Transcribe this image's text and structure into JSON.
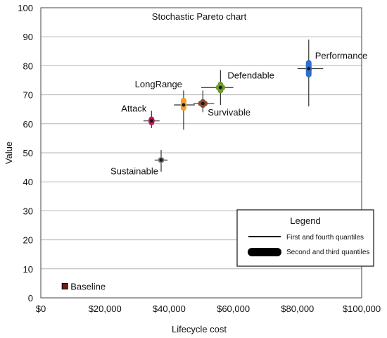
{
  "chart_data": {
    "type": "scatter",
    "title": "Stochastic Pareto chart",
    "xlabel": "Lifecycle cost",
    "ylabel": "Value",
    "xlim": [
      0,
      100000
    ],
    "ylim": [
      0,
      100
    ],
    "x_ticks": [
      0,
      20000,
      40000,
      60000,
      80000,
      100000
    ],
    "x_tick_labels": [
      "$0",
      "$20,000",
      "$40,000",
      "$60,000",
      "$80,000",
      "$100,000"
    ],
    "y_ticks": [
      0,
      10,
      20,
      30,
      40,
      50,
      60,
      70,
      80,
      90,
      100
    ],
    "y_tick_labels": [
      "0",
      "10",
      "20",
      "30",
      "40",
      "50",
      "60",
      "70",
      "80",
      "90",
      "100"
    ],
    "grid": true,
    "legend": {
      "title": "Legend",
      "placement": "bottom-right",
      "entries": [
        {
          "label": "First and fourth quantiles",
          "style": "thin-line"
        },
        {
          "label": "Second and third quantiles",
          "style": "thick-bar"
        }
      ]
    },
    "points": [
      {
        "name": "Baseline",
        "x": 7500,
        "y": 4,
        "x_q": [
          7500,
          7500,
          7500,
          7500
        ],
        "y_q": [
          4,
          4,
          4,
          4
        ],
        "color": "#6b1e12",
        "label_side": "right"
      },
      {
        "name": "Attack",
        "x": 34500,
        "y": 61,
        "x_q": [
          32000,
          33500,
          35500,
          37000
        ],
        "y_q": [
          58.5,
          59.5,
          62.5,
          64.5
        ],
        "color": "#c2185b",
        "label_side": "left"
      },
      {
        "name": "Sustainable",
        "x": 37500,
        "y": 47.5,
        "x_q": [
          35500,
          36500,
          38500,
          39500
        ],
        "y_q": [
          43.5,
          46.5,
          48.5,
          51
        ],
        "color": "#7f7f7f",
        "label_side": "left"
      },
      {
        "name": "LongRange",
        "x": 44500,
        "y": 66.5,
        "x_q": [
          41500,
          43500,
          45500,
          48000
        ],
        "y_q": [
          58,
          64.5,
          69,
          71.5
        ],
        "color": "#f0a030",
        "label_side": "left"
      },
      {
        "name": "Survivable",
        "x": 50500,
        "y": 67,
        "x_q": [
          47500,
          49000,
          52000,
          54000
        ],
        "y_q": [
          64,
          65.5,
          68.5,
          71.5
        ],
        "color": "#8b4a36",
        "label_side": "right"
      },
      {
        "name": "Defendable",
        "x": 56000,
        "y": 72.5,
        "x_q": [
          50000,
          54500,
          57500,
          60000
        ],
        "y_q": [
          66.5,
          70.5,
          74.5,
          78.5
        ],
        "color": "#6e9a30",
        "label_side": "right"
      },
      {
        "name": "Performance",
        "x": 83500,
        "y": 79,
        "x_q": [
          80000,
          82500,
          84500,
          88000
        ],
        "y_q": [
          66,
          76,
          82,
          89
        ],
        "color": "#2f6fc9",
        "label_side": "right"
      }
    ]
  }
}
